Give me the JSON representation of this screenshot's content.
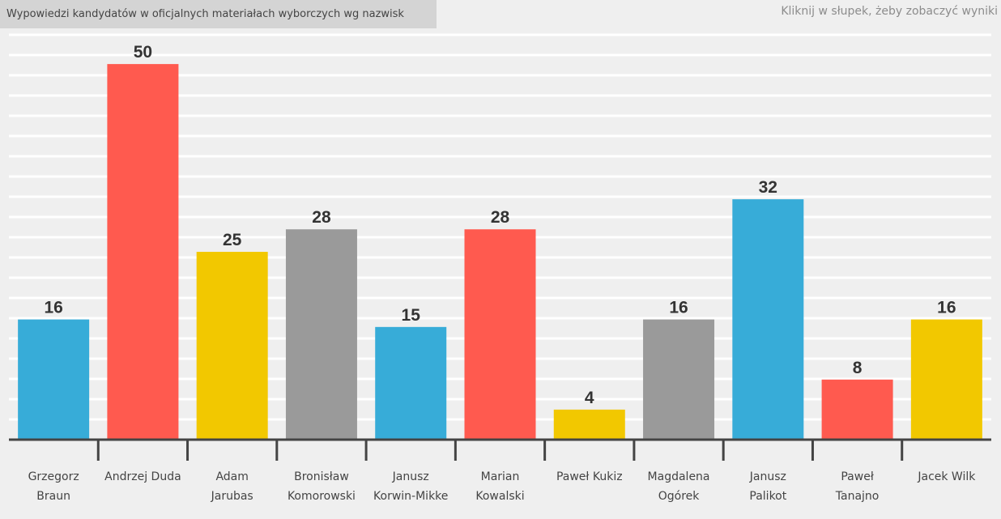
{
  "header": {
    "title": "Wypowiedzi kandydatów w oficjalnych materiałach wyborczych wg nazwisk",
    "hint": "Kliknij w słupek, żeby zobaczyć wyniki"
  },
  "colors": {
    "blue": "#37acd8",
    "red": "#ff5a4f",
    "yellow": "#f2c800",
    "gray": "#9a9a9a",
    "axis": "#444444",
    "grid": "#ffffff"
  },
  "chart_data": {
    "type": "bar",
    "categories": [
      [
        "Grzegorz",
        "Braun"
      ],
      [
        "Andrzej Duda"
      ],
      [
        "Adam",
        "Jarubas"
      ],
      [
        "Bronisław",
        "Komorowski"
      ],
      [
        "Janusz",
        "Korwin-Mikke"
      ],
      [
        "Marian",
        "Kowalski"
      ],
      [
        "Paweł Kukiz"
      ],
      [
        "Magdalena",
        "Ogórek"
      ],
      [
        "Janusz",
        "Palikot"
      ],
      [
        "Paweł",
        "Tanajno"
      ],
      [
        "Jacek Wilk"
      ]
    ],
    "values": [
      16,
      50,
      25,
      28,
      15,
      28,
      4,
      16,
      32,
      8,
      16
    ],
    "bar_colors": [
      "blue",
      "red",
      "yellow",
      "gray",
      "blue",
      "red",
      "yellow",
      "gray",
      "blue",
      "red",
      "yellow"
    ],
    "ylim": [
      0,
      54
    ],
    "grid": true,
    "data_labels": true
  }
}
